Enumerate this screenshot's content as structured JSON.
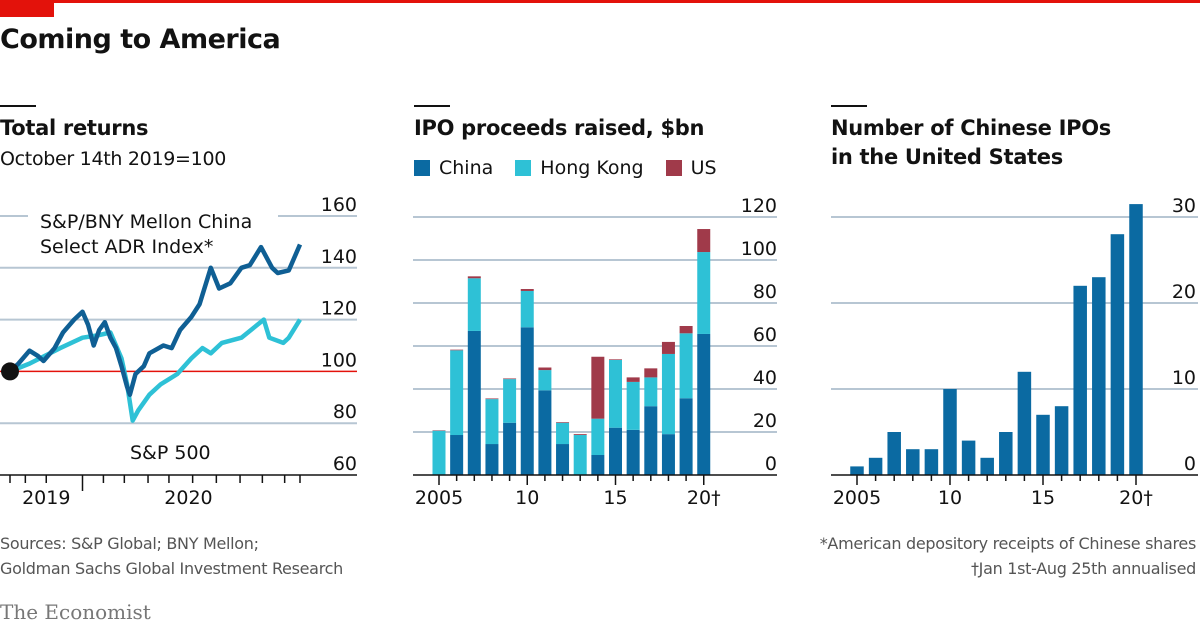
{
  "header": {
    "title": "Coming to America"
  },
  "colors": {
    "china": "#0b6aa2",
    "hong_kong": "#2ec1d6",
    "us": "#a03a4a",
    "sp500": "#2ec1d6",
    "adr_index": "#0f5f94",
    "baseline": "#e3120b",
    "grid": "#b7c6d3",
    "accent": "#e3120b"
  },
  "panels": {
    "returns": {
      "title": "Total returns",
      "subtitle": "October 14th 2019=100",
      "adr_label_line1": "S&P/BNY Mellon China",
      "adr_label_line2": "Select ADR Index*",
      "sp_label": "S&P 500"
    },
    "ipo": {
      "title": "IPO proceeds raised, $bn",
      "legend": [
        {
          "label": "China",
          "color": "#0b6aa2"
        },
        {
          "label": "Hong Kong",
          "color": "#2ec1d6"
        },
        {
          "label": "US",
          "color": "#a03a4a"
        }
      ]
    },
    "count": {
      "title_line1": "Number of Chinese IPOs",
      "title_line2": "in the United States"
    }
  },
  "footer": {
    "sources_line1": "Sources: S&P Global; BNY Mellon;",
    "sources_line2": "Goldman Sachs Global Investment Research",
    "footnote_1": "*American depository receipts of Chinese shares",
    "footnote_2": "†Jan 1st-Aug 25th annualised",
    "brand": "The Economist"
  },
  "chart_data": [
    {
      "type": "line",
      "title": "Total returns",
      "subtitle": "October 14th 2019=100",
      "ylim": [
        60,
        160
      ],
      "yticks": [
        60,
        80,
        100,
        120,
        140,
        160
      ],
      "xrange_months": [
        0,
        10.4
      ],
      "xticks_labels": [
        {
          "label": "2019",
          "month": 1.3
        },
        {
          "label": "2020",
          "month": 6.4
        }
      ],
      "year_divider_month": 2.6,
      "baseline": 100,
      "x_unit": "months since Oct 14th 2019",
      "series": [
        {
          "name": "S&P/BNY Mellon China Select ADR Index*",
          "x": [
            0,
            0.3,
            0.7,
            1.0,
            1.2,
            1.6,
            1.9,
            2.3,
            2.6,
            2.8,
            3.0,
            3.2,
            3.4,
            3.6,
            3.8,
            4.0,
            4.2,
            4.3,
            4.5,
            4.8,
            5.0,
            5.5,
            5.8,
            6.1,
            6.5,
            6.8,
            7.2,
            7.5,
            7.9,
            8.3,
            8.6,
            9.0,
            9.4,
            9.6,
            10.0,
            10.4
          ],
          "values": [
            100,
            103,
            108,
            106,
            104,
            109,
            115,
            120,
            123,
            118,
            110,
            116,
            119,
            113,
            109,
            102,
            94,
            91,
            99,
            102,
            107,
            110,
            109,
            116,
            121,
            126,
            140,
            132,
            134,
            140,
            141,
            148,
            140,
            138,
            139,
            149
          ]
        },
        {
          "name": "S&P 500",
          "x": [
            0,
            0.7,
            1.8,
            2.6,
            3.2,
            3.6,
            3.8,
            4.0,
            4.2,
            4.4,
            4.6,
            5.0,
            5.4,
            6.0,
            6.5,
            6.9,
            7.2,
            7.6,
            8.3,
            9.1,
            9.3,
            9.8,
            10.0,
            10.4
          ],
          "values": [
            100,
            103,
            109,
            113,
            114,
            115,
            110,
            105,
            95,
            81,
            85,
            91,
            95,
            99,
            105,
            109,
            107,
            111,
            113,
            120,
            113,
            111,
            113,
            120
          ]
        }
      ]
    },
    {
      "type": "bar",
      "stacked": true,
      "title": "IPO proceeds raised, $bn",
      "categories": [
        "2005",
        "2006",
        "2007",
        "2008",
        "2009",
        "2010",
        "2011",
        "2012",
        "2013",
        "2014",
        "2015",
        "2016",
        "2017",
        "2018",
        "2019",
        "2020†"
      ],
      "xtick_labels": [
        {
          "label": "2005",
          "index": 0
        },
        {
          "label": "10",
          "index": 5
        },
        {
          "label": "15",
          "index": 10
        },
        {
          "label": "20†",
          "index": 15
        }
      ],
      "ylim": [
        0,
        120
      ],
      "yticks": [
        0,
        20,
        40,
        60,
        80,
        100,
        120
      ],
      "series": [
        {
          "name": "China",
          "values": [
            0,
            18.6,
            67,
            14.4,
            24.3,
            68.7,
            39.4,
            14.4,
            0,
            9.3,
            22,
            21,
            32,
            19,
            35.7,
            65.6
          ]
        },
        {
          "name": "Hong Kong",
          "values": [
            20.6,
            39.4,
            24.5,
            20.9,
            20.3,
            16.9,
            9.4,
            9.9,
            18.6,
            16.9,
            31.5,
            22.3,
            13.4,
            37.3,
            30.2,
            38.1
          ]
        },
        {
          "name": "US",
          "values": [
            0.2,
            0.3,
            0.9,
            0.3,
            0.3,
            0.9,
            1.2,
            0.3,
            0.4,
            28.8,
            0.3,
            2.1,
            4.2,
            5.6,
            3.4,
            10.7
          ]
        }
      ]
    },
    {
      "type": "bar",
      "title": "Number of Chinese IPOs in the United States",
      "categories": [
        "2005",
        "2006",
        "2007",
        "2008",
        "2009",
        "2010",
        "2011",
        "2012",
        "2013",
        "2014",
        "2015",
        "2016",
        "2017",
        "2018",
        "2019",
        "2020†"
      ],
      "xtick_labels": [
        {
          "label": "2005",
          "index": 0
        },
        {
          "label": "10",
          "index": 5
        },
        {
          "label": "15",
          "index": 10
        },
        {
          "label": "20†",
          "index": 15
        }
      ],
      "values": [
        1,
        2,
        5,
        3,
        3,
        10,
        4,
        2,
        5,
        12,
        7,
        8,
        22,
        23,
        28,
        31.5
      ],
      "ylim": [
        0,
        30
      ],
      "yticks": [
        0,
        10,
        20,
        30
      ]
    }
  ]
}
